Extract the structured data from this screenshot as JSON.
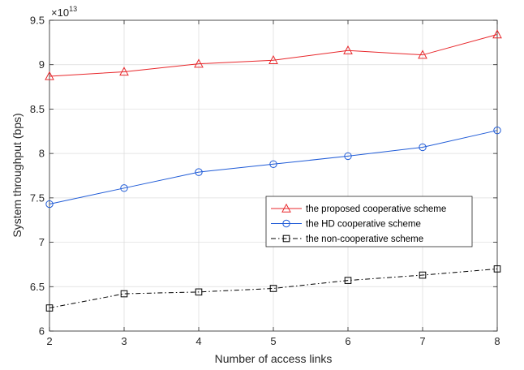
{
  "chart_data": {
    "type": "line",
    "title": "",
    "xlabel": "Number of access links",
    "ylabel": "System throughput (bps)",
    "y_exponent_label": "×10",
    "y_exponent_power": "13",
    "x": [
      2,
      3,
      4,
      5,
      6,
      7,
      8
    ],
    "xlim": [
      2,
      8
    ],
    "ylim": [
      6,
      9.5
    ],
    "x_ticks": [
      "2",
      "3",
      "4",
      "5",
      "6",
      "7",
      "8"
    ],
    "y_ticks": [
      "6",
      "6.5",
      "7",
      "7.5",
      "8",
      "8.5",
      "9",
      "9.5"
    ],
    "grid": true,
    "legend_position": "center-right",
    "series": [
      {
        "name": "the proposed cooperative scheme",
        "values": [
          8.87,
          8.92,
          9.01,
          9.05,
          9.16,
          9.11,
          9.34
        ],
        "color": "#e8272b",
        "marker": "triangle",
        "line_style": "solid"
      },
      {
        "name": "the HD cooperative scheme",
        "values": [
          7.43,
          7.61,
          7.79,
          7.88,
          7.97,
          8.07,
          8.26
        ],
        "color": "#1f5bd7",
        "marker": "circle",
        "line_style": "solid"
      },
      {
        "name": " the non-cooperative scheme",
        "values": [
          6.26,
          6.42,
          6.44,
          6.48,
          6.57,
          6.63,
          6.7
        ],
        "color": "#000000",
        "marker": "square",
        "line_style": "dashdot"
      }
    ]
  }
}
